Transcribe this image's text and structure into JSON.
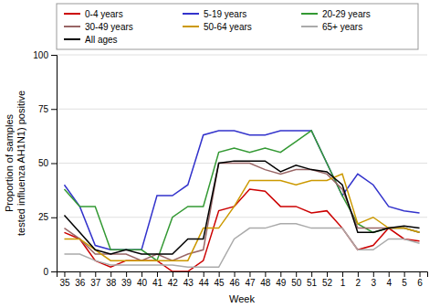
{
  "chart_data": {
    "type": "line",
    "x_label": "Week",
    "y_label": "Proportion of samples\ntested influenza AH1N1) positive",
    "categories": [
      "35",
      "36",
      "37",
      "38",
      "39",
      "40",
      "41",
      "42",
      "43",
      "44",
      "45",
      "46",
      "47",
      "48",
      "49",
      "50",
      "51",
      "52",
      "1",
      "2",
      "3",
      "4",
      "5",
      "6"
    ],
    "series": [
      {
        "name": "0-4 years",
        "color": "#cc0000",
        "values": [
          18,
          15,
          5,
          2,
          5,
          5,
          5,
          0,
          0,
          5,
          28,
          30,
          38,
          37,
          30,
          30,
          27,
          28,
          20,
          10,
          12,
          20,
          15,
          14
        ]
      },
      {
        "name": "5-19 years",
        "color": "#3333cc",
        "values": [
          40,
          30,
          12,
          10,
          10,
          10,
          35,
          35,
          40,
          63,
          65,
          65,
          63,
          63,
          65,
          65,
          65,
          50,
          35,
          45,
          40,
          30,
          28,
          27
        ]
      },
      {
        "name": "20-29 years",
        "color": "#339933",
        "values": [
          38,
          30,
          30,
          10,
          10,
          10,
          5,
          25,
          30,
          30,
          55,
          57,
          55,
          57,
          55,
          60,
          65,
          50,
          35,
          22,
          18,
          20,
          20,
          18
        ]
      },
      {
        "name": "30-49 years",
        "color": "#996666",
        "values": [
          20,
          15,
          8,
          8,
          8,
          5,
          8,
          5,
          8,
          10,
          50,
          50,
          50,
          47,
          45,
          47,
          47,
          45,
          38,
          20,
          20,
          20,
          20,
          18
        ]
      },
      {
        "name": "50-64 years",
        "color": "#cc9900",
        "values": [
          15,
          15,
          10,
          5,
          5,
          5,
          5,
          5,
          5,
          20,
          20,
          30,
          42,
          42,
          42,
          40,
          42,
          42,
          45,
          22,
          25,
          20,
          20,
          18
        ]
      },
      {
        "name": "65+ years",
        "color": "#aaaaaa",
        "values": [
          8,
          8,
          5,
          3,
          3,
          3,
          3,
          3,
          2,
          2,
          2,
          15,
          20,
          20,
          22,
          22,
          20,
          20,
          20,
          10,
          10,
          15,
          15,
          13
        ]
      },
      {
        "name": "All ages",
        "color": "#000000",
        "values": [
          26,
          18,
          10,
          8,
          10,
          8,
          8,
          8,
          15,
          15,
          50,
          51,
          51,
          51,
          46,
          49,
          47,
          46,
          40,
          18,
          18,
          20,
          21,
          20
        ]
      }
    ],
    "ylim": [
      0,
      100
    ],
    "yticks": [
      0,
      25,
      50,
      75,
      100
    ],
    "grid": true,
    "legend": "top"
  }
}
